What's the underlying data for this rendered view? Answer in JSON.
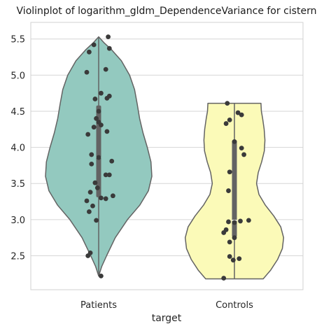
{
  "chart_data": {
    "type": "violin",
    "title": "Violinplot of logarithm_gldm_DependenceVariance for cistern",
    "xlabel": "target",
    "ylabel": "",
    "categories": [
      "Patients",
      "Controls"
    ],
    "ylim": [
      2.03,
      5.73
    ],
    "yticks": [
      2.5,
      3.0,
      3.5,
      4.0,
      4.5,
      5.0,
      5.5
    ],
    "ytick_labels": [
      "2.5",
      "3.0",
      "3.5",
      "4.0",
      "4.5",
      "5.0",
      "5.5"
    ],
    "grid": true,
    "series": [
      {
        "category": "Patients",
        "color": "#93c9bf",
        "range": [
          2.22,
          5.53
        ],
        "quartiles": [
          3.31,
          3.86,
          4.58
        ],
        "density": [
          [
            2.22,
            0.0
          ],
          [
            2.35,
            0.05
          ],
          [
            2.5,
            0.12
          ],
          [
            2.75,
            0.28
          ],
          [
            3.0,
            0.52
          ],
          [
            3.2,
            0.76
          ],
          [
            3.4,
            0.93
          ],
          [
            3.6,
            0.98
          ],
          [
            3.8,
            0.96
          ],
          [
            4.0,
            0.88
          ],
          [
            4.2,
            0.8
          ],
          [
            4.4,
            0.73
          ],
          [
            4.6,
            0.7
          ],
          [
            4.8,
            0.66
          ],
          [
            5.0,
            0.58
          ],
          [
            5.2,
            0.42
          ],
          [
            5.35,
            0.22
          ],
          [
            5.45,
            0.08
          ],
          [
            5.53,
            0.0
          ]
        ],
        "points": [
          [
            0.08,
            5.53
          ],
          [
            -0.04,
            5.42
          ],
          [
            0.09,
            5.37
          ],
          [
            -0.08,
            5.32
          ],
          [
            0.06,
            5.08
          ],
          [
            -0.1,
            5.04
          ],
          [
            0.02,
            4.75
          ],
          [
            0.09,
            4.71
          ],
          [
            0.07,
            4.68
          ],
          [
            -0.03,
            4.67
          ],
          [
            0.0,
            4.5
          ],
          [
            -0.02,
            4.4
          ],
          [
            0.0,
            4.35
          ],
          [
            0.02,
            4.31
          ],
          [
            -0.04,
            4.28
          ],
          [
            0.07,
            4.22
          ],
          [
            -0.09,
            4.18
          ],
          [
            -0.06,
            3.9
          ],
          [
            0.0,
            3.86
          ],
          [
            0.11,
            3.81
          ],
          [
            -0.06,
            3.77
          ],
          [
            0.06,
            3.62
          ],
          [
            0.09,
            3.62
          ],
          [
            -0.03,
            3.51
          ],
          [
            -0.01,
            3.44
          ],
          [
            -0.07,
            3.38
          ],
          [
            0.12,
            3.33
          ],
          [
            0.02,
            3.3
          ],
          [
            0.06,
            3.29
          ],
          [
            -0.1,
            3.26
          ],
          [
            -0.05,
            3.19
          ],
          [
            -0.08,
            3.11
          ],
          [
            -0.02,
            2.99
          ],
          [
            -0.07,
            2.54
          ],
          [
            -0.09,
            2.5
          ],
          [
            0.02,
            2.22
          ]
        ]
      },
      {
        "category": "Controls",
        "color": "#fbfab8",
        "range": [
          2.18,
          4.61
        ],
        "quartiles": [
          2.76,
          2.99,
          4.1
        ],
        "density": [
          [
            2.18,
            0.52
          ],
          [
            2.3,
            0.65
          ],
          [
            2.45,
            0.8
          ],
          [
            2.6,
            0.88
          ],
          [
            2.75,
            0.91
          ],
          [
            2.9,
            0.86
          ],
          [
            3.05,
            0.72
          ],
          [
            3.2,
            0.55
          ],
          [
            3.35,
            0.42
          ],
          [
            3.5,
            0.38
          ],
          [
            3.65,
            0.42
          ],
          [
            3.8,
            0.5
          ],
          [
            3.95,
            0.55
          ],
          [
            4.1,
            0.56
          ],
          [
            4.25,
            0.54
          ],
          [
            4.4,
            0.51
          ],
          [
            4.5,
            0.48
          ],
          [
            4.61,
            0.48
          ]
        ],
        "points": [
          [
            -0.06,
            4.61
          ],
          [
            0.03,
            4.48
          ],
          [
            0.06,
            4.45
          ],
          [
            -0.04,
            4.38
          ],
          [
            -0.07,
            4.33
          ],
          [
            0.0,
            4.08
          ],
          [
            0.06,
            3.99
          ],
          [
            0.08,
            3.9
          ],
          [
            -0.04,
            3.66
          ],
          [
            -0.05,
            3.4
          ],
          [
            0.12,
            2.99
          ],
          [
            0.05,
            2.98
          ],
          [
            -0.05,
            2.97
          ],
          [
            0.0,
            2.96
          ],
          [
            -0.07,
            2.86
          ],
          [
            -0.09,
            2.82
          ],
          [
            0.0,
            2.75
          ],
          [
            -0.04,
            2.69
          ],
          [
            -0.04,
            2.49
          ],
          [
            0.04,
            2.46
          ],
          [
            -0.01,
            2.44
          ],
          [
            -0.09,
            2.19
          ]
        ]
      }
    ]
  }
}
